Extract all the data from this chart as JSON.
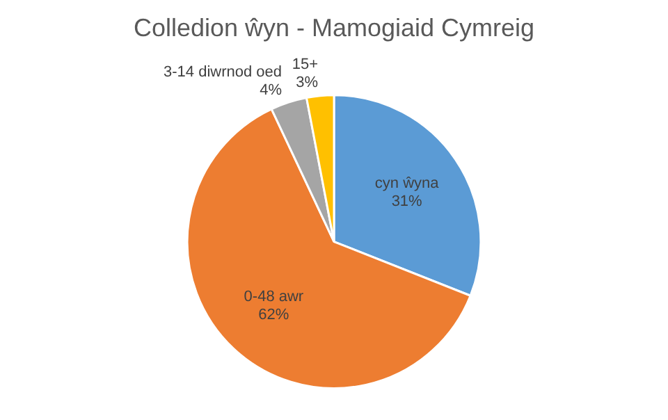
{
  "chart_data": {
    "type": "pie",
    "title": "Colledion ŵyn - Mamogiaid Cymreig",
    "categories": [
      "cyn ŵyna",
      "0-48 awr",
      "3-14 diwrnod oed",
      "15+"
    ],
    "values": [
      31,
      62,
      4,
      3
    ],
    "colors": [
      "#5b9bd5",
      "#ed7d31",
      "#a5a5a5",
      "#ffc000"
    ],
    "value_labels": [
      "31%",
      "62%",
      "4%",
      "3%"
    ],
    "legend": false
  }
}
